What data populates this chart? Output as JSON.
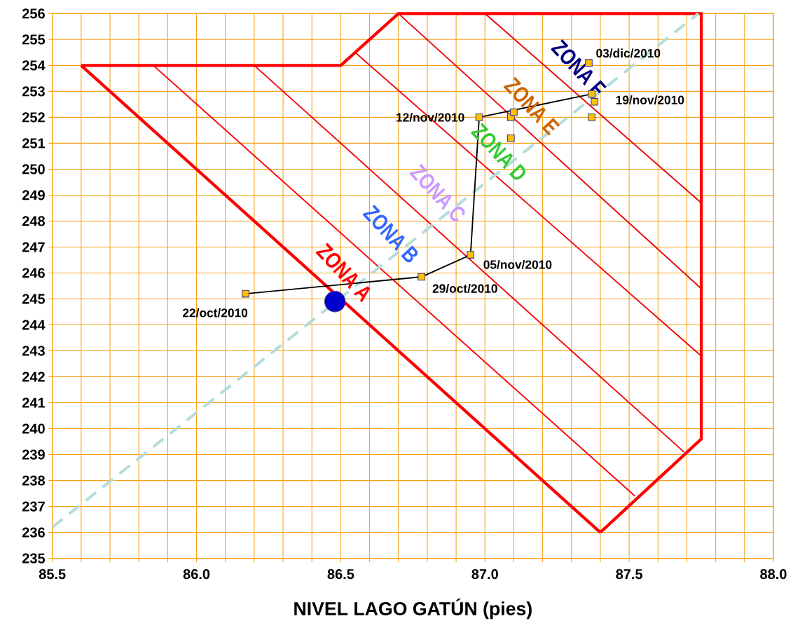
{
  "chart_data": {
    "type": "line",
    "xlabel": "NIVEL LAGO GATÚN (pies)",
    "xlim": [
      85.5,
      88.0
    ],
    "ylim": [
      235,
      256
    ],
    "xticks": [
      85.5,
      {
        "value": 85.6,
        "label": null
      },
      {
        "value": 85.7,
        "label": null
      },
      {
        "value": 85.8,
        "label": null
      },
      {
        "value": 85.9,
        "label": null
      },
      {
        "value": 86.0,
        "label": "86.0"
      },
      {
        "value": 86.1,
        "label": null
      },
      {
        "value": 86.2,
        "label": null
      },
      {
        "value": 86.3,
        "label": null
      },
      {
        "value": 86.4,
        "label": null
      },
      86.5,
      {
        "value": 86.6,
        "label": null
      },
      {
        "value": 86.7,
        "label": null
      },
      {
        "value": 86.8,
        "label": null
      },
      {
        "value": 86.9,
        "label": null
      },
      {
        "value": 87.0,
        "label": "87.0"
      },
      {
        "value": 87.1,
        "label": null
      },
      {
        "value": 87.2,
        "label": null
      },
      {
        "value": 87.3,
        "label": null
      },
      {
        "value": 87.4,
        "label": null
      },
      87.5,
      {
        "value": 87.6,
        "label": null
      },
      {
        "value": 87.7,
        "label": null
      },
      {
        "value": 87.8,
        "label": null
      },
      {
        "value": 87.9,
        "label": null
      },
      {
        "value": 88.0,
        "label": "88.0"
      }
    ],
    "yticks": [
      235,
      236,
      237,
      238,
      239,
      240,
      241,
      242,
      243,
      244,
      245,
      246,
      247,
      248,
      249,
      250,
      251,
      252,
      253,
      254,
      255,
      256
    ],
    "grid": true,
    "series": [
      {
        "color": "#ff0000",
        "marker": "none",
        "x": [
          85.6,
          86.5,
          86.7,
          87.75,
          87.75,
          87.4
        ],
        "values": [
          254,
          254,
          256,
          256,
          239.6,
          236
        ]
      },
      {
        "color": "#fc0000",
        "marker": "none",
        "x": [
          85.6,
          87.4
        ],
        "values": [
          254,
          236
        ]
      },
      {
        "color": "#fa0000",
        "marker": "none",
        "x": [
          85.85,
          87.52
        ],
        "values": [
          254,
          237.4
        ]
      },
      {
        "color": "#f50000",
        "marker": "none",
        "x": [
          86.2,
          87.69
        ],
        "values": [
          254,
          239.1
        ]
      },
      {
        "color": "#f00000",
        "marker": "none",
        "x": [
          86.55,
          87.75
        ],
        "values": [
          254.5,
          242.8
        ]
      },
      {
        "color": "#eb0000",
        "marker": "none",
        "x": [
          86.7,
          87.75
        ],
        "values": [
          256,
          245.4
        ]
      },
      {
        "color": "#e60000",
        "marker": "none",
        "x": [
          87.0,
          87.75
        ],
        "values": [
          256,
          248.7
        ]
      },
      {
        "color": "#b4dcdc",
        "marker": "none",
        "line_style": "dashed",
        "x": [
          85.5,
          87.74
        ],
        "values": [
          236.2,
          256
        ]
      },
      {
        "color": "#000000",
        "marker": "none",
        "x": [
          86.17,
          86.78,
          86.95,
          86.98,
          87.37
        ],
        "values": [
          245.2,
          245.85,
          246.7,
          252.0,
          252.9
        ]
      },
      {
        "type": "scatter",
        "color": "#ffc000",
        "marker": "square",
        "x": [
          86.17,
          86.78,
          86.95,
          86.98,
          87.09,
          87.1,
          87.09,
          87.36,
          87.37,
          87.38,
          87.37
        ],
        "values": [
          245.2,
          245.85,
          246.7,
          252.0,
          252.0,
          252.2,
          251.2,
          254.1,
          252.9,
          252.6,
          252.0
        ]
      },
      {
        "type": "scatter",
        "color": "#0000cc",
        "marker": "circle",
        "x": [
          86.48
        ],
        "values": [
          244.9
        ]
      }
    ],
    "annotations": [
      {
        "text": "22/oct/2010",
        "x": 86.17,
        "y": 245.2
      },
      {
        "text": "29/oct/2010",
        "x": 86.78,
        "y": 245.85
      },
      {
        "text": "05/nov/2010",
        "x": 86.95,
        "y": 246.7
      },
      {
        "text": "12/nov/2010",
        "x": 86.98,
        "y": 252.0
      },
      {
        "text": "19/nov/2010",
        "x": 87.37,
        "y": 252.9
      },
      {
        "text": "03/dic/2010",
        "x": 87.36,
        "y": 254.1
      },
      "ZONA A",
      "ZONA B",
      "ZONA C",
      "ZONA D",
      "ZONA E",
      "ZONA F"
    ]
  }
}
